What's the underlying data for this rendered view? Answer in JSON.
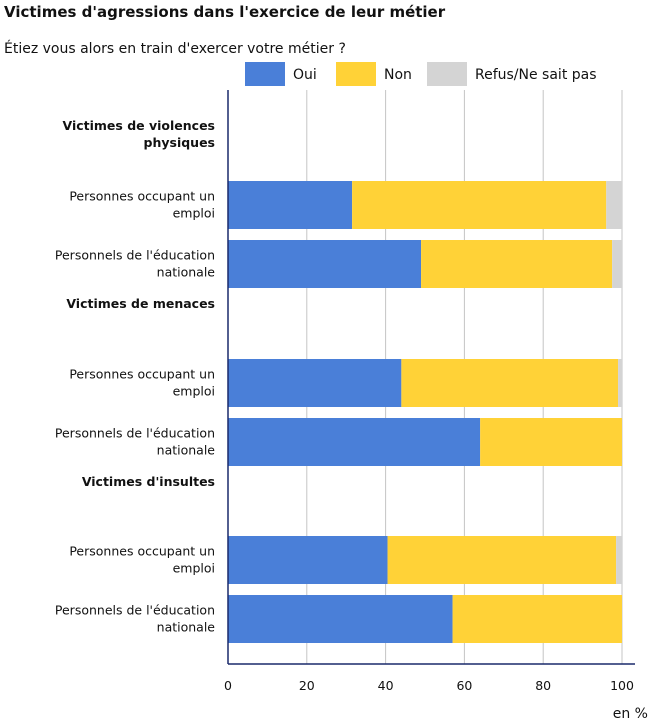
{
  "chart_data": {
    "type": "bar",
    "orientation": "horizontal",
    "stacked": true,
    "title": "Victimes d'agressions dans l'exercice de leur métier",
    "subtitle": "Étiez vous alors en train d'exercer votre métier ?",
    "xlabel": "en %",
    "xlim": [
      0,
      100
    ],
    "xticks": [
      0,
      20,
      40,
      60,
      80,
      100
    ],
    "grid": true,
    "legend_position": "top",
    "groups": [
      {
        "label_lines": [
          "Victimes de violences",
          "physiques"
        ],
        "rows": [
          {
            "label_lines": [
              "Personnes occupant un",
              "emploi"
            ],
            "values": [
              31.5,
              64.5,
              4.0
            ]
          },
          {
            "label_lines": [
              "Personnels de l'éducation",
              "nationale"
            ],
            "values": [
              49.0,
              48.5,
              2.5
            ]
          }
        ]
      },
      {
        "label_lines": [
          "Victimes de menaces"
        ],
        "rows": [
          {
            "label_lines": [
              "Personnes occupant un",
              "emploi"
            ],
            "values": [
              44.0,
              55.0,
              1.0
            ]
          },
          {
            "label_lines": [
              "Personnels de l'éducation",
              "nationale"
            ],
            "values": [
              64.0,
              36.0,
              0.0
            ]
          }
        ]
      },
      {
        "label_lines": [
          "Victimes d'insultes"
        ],
        "rows": [
          {
            "label_lines": [
              "Personnes occupant un",
              "emploi"
            ],
            "values": [
              40.5,
              58.0,
              1.5
            ]
          },
          {
            "label_lines": [
              "Personnels de l'éducation",
              "nationale"
            ],
            "values": [
              57.0,
              43.0,
              0.0
            ]
          }
        ]
      }
    ],
    "series": [
      {
        "name": "Oui",
        "color": "#4a7fd8"
      },
      {
        "name": "Non",
        "color": "#ffd237"
      },
      {
        "name": "Refus/Ne sait pas",
        "color": "#d4d4d4"
      }
    ]
  }
}
